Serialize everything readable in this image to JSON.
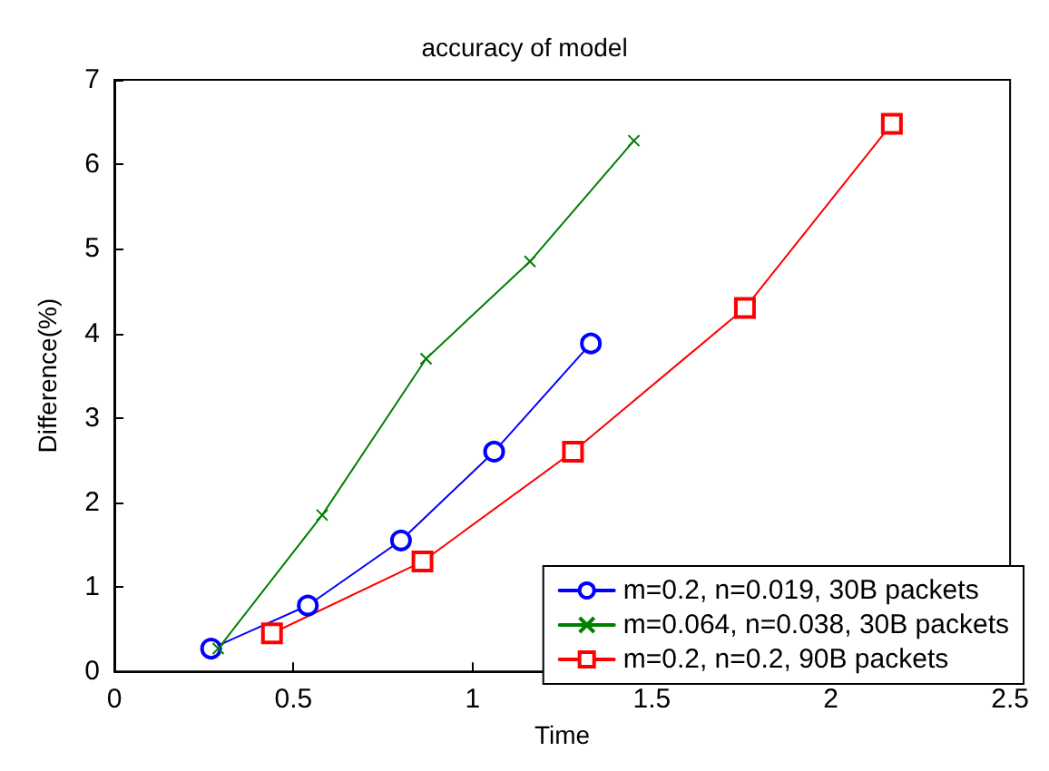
{
  "chart_data": {
    "type": "line",
    "title": "accuracy of model",
    "xlabel": "Time",
    "ylabel": "Difference(%)",
    "xlim": [
      0,
      2.5
    ],
    "xticks": [
      0,
      0.5,
      1,
      1.5,
      2,
      2.5
    ],
    "ylim": [
      0,
      7
    ],
    "yticks": [
      0,
      1,
      2,
      3,
      4,
      5,
      6,
      7
    ],
    "grid": false,
    "legend": "bottom right",
    "line_style": "solid",
    "series": [
      {
        "name": "m=0.2, n=0.019, 30B packets",
        "color": "#0000ff",
        "marker": "circle",
        "x": [
          0.27,
          0.54,
          0.8,
          1.06,
          1.33
        ],
        "values": [
          0.27,
          0.78,
          1.55,
          2.6,
          3.88
        ]
      },
      {
        "name": "m=0.064, n=0.038, 30B packets",
        "color": "#008000",
        "marker": "cross",
        "x": [
          0.29,
          0.58,
          0.87,
          1.16,
          1.45
        ],
        "values": [
          0.27,
          1.85,
          3.7,
          4.85,
          6.28
        ]
      },
      {
        "name": "m=0.2, n=0.2, 90B packets",
        "color": "#ff0000",
        "marker": "square",
        "x": [
          0.44,
          0.86,
          1.28,
          1.76,
          2.17
        ],
        "values": [
          0.45,
          1.3,
          2.6,
          4.3,
          6.48
        ]
      }
    ]
  }
}
